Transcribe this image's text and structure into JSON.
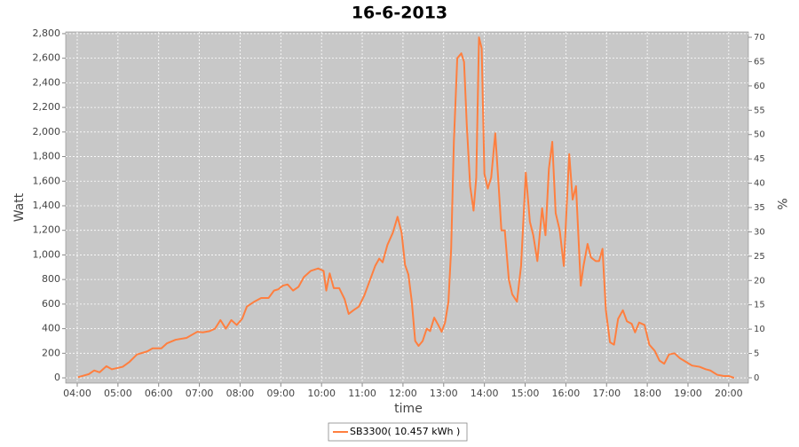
{
  "chart_data": {
    "type": "line",
    "title": "16-6-2013",
    "x_label": "time",
    "y_label": "Watt",
    "y2_label": "%",
    "grid": true,
    "legend": "bottom",
    "xlim": [
      "03:43",
      "20:29"
    ],
    "xticks": [
      "04:00",
      "05:00",
      "06:00",
      "07:00",
      "08:00",
      "09:00",
      "10:00",
      "11:00",
      "12:00",
      "13:00",
      "14:00",
      "15:00",
      "16:00",
      "17:00",
      "18:00",
      "19:00",
      "20:00"
    ],
    "ylim": [
      -43,
      2814
    ],
    "yticks": [
      0,
      200,
      400,
      600,
      800,
      {
        "value": 1000,
        "label": "1,000"
      },
      {
        "value": 1200,
        "label": "1,200"
      },
      {
        "value": 1400,
        "label": "1,400"
      },
      {
        "value": 1600,
        "label": "1,600"
      },
      {
        "value": 1800,
        "label": "1,800"
      },
      {
        "value": 2000,
        "label": "2,000"
      },
      {
        "value": 2200,
        "label": "2,200"
      },
      {
        "value": 2400,
        "label": "2,400"
      },
      {
        "value": 2600,
        "label": "2,600"
      },
      {
        "value": 2800,
        "label": "2,800"
      }
    ],
    "y2lim": [
      -1.1,
      71.1
    ],
    "y2ticks": [
      0,
      5,
      10,
      15,
      20,
      25,
      30,
      35,
      40,
      45,
      50,
      55,
      60,
      65,
      70
    ],
    "x": [
      "04:01",
      "04:17",
      "04:25",
      "04:33",
      "04:43",
      "04:51",
      "05:07",
      "05:17",
      "05:28",
      "05:43",
      "05:51",
      "06:04",
      "06:12",
      "06:25",
      "06:41",
      "06:57",
      "07:05",
      "07:15",
      "07:23",
      "07:31",
      "07:39",
      "07:47",
      "07:55",
      "08:03",
      "08:10",
      "08:21",
      "08:31",
      "08:42",
      "08:50",
      "08:56",
      "09:03",
      "09:10",
      "09:18",
      "09:26",
      "09:34",
      "09:44",
      "09:55",
      "10:03",
      "10:07",
      "10:12",
      "10:18",
      "10:26",
      "10:34",
      "10:40",
      "10:47",
      "10:55",
      "11:03",
      "11:11",
      "11:19",
      "11:25",
      "11:30",
      "11:37",
      "11:45",
      "11:52",
      "11:58",
      "12:03",
      "12:08",
      "12:13",
      "12:18",
      "12:23",
      "12:29",
      "12:35",
      "12:40",
      "12:46",
      "12:52",
      "12:57",
      "13:02",
      "13:07",
      "13:11",
      "13:15",
      "13:20",
      "13:26",
      "13:30",
      "13:34",
      "13:39",
      "13:44",
      "13:48",
      "13:52",
      "13:56",
      "14:00",
      "14:05",
      "14:10",
      "14:16",
      "14:21",
      "14:25",
      "14:30",
      "14:36",
      "14:41",
      "14:48",
      "14:54",
      "15:01",
      "15:07",
      "15:12",
      "15:18",
      "15:25",
      "15:30",
      "15:35",
      "15:40",
      "15:45",
      "15:51",
      "15:57",
      "16:05",
      "16:10",
      "16:15",
      "16:22",
      "16:26",
      "16:32",
      "16:37",
      "16:44",
      "16:49",
      "16:54",
      "16:59",
      "17:05",
      "17:11",
      "17:17",
      "17:24",
      "17:30",
      "17:37",
      "17:42",
      "17:48",
      "17:56",
      "18:03",
      "18:11",
      "18:18",
      "18:25",
      "18:32",
      "18:40",
      "18:48",
      "18:57",
      "19:06",
      "19:17",
      "19:26",
      "19:33",
      "19:43",
      "19:53",
      "20:00",
      "20:08"
    ],
    "series": [
      {
        "name": "SB3300( 10.457 kWh )",
        "color": "#ff7f3f",
        "values": [
          5,
          30,
          60,
          45,
          95,
          70,
          90,
          130,
          190,
          215,
          240,
          240,
          280,
          310,
          325,
          375,
          370,
          380,
          400,
          470,
          400,
          470,
          430,
          480,
          580,
          620,
          650,
          650,
          710,
          720,
          750,
          760,
          710,
          740,
          820,
          870,
          890,
          870,
          710,
          850,
          730,
          730,
          640,
          520,
          550,
          580,
          670,
          790,
          910,
          970,
          940,
          1080,
          1180,
          1310,
          1180,
          920,
          840,
          620,
          300,
          260,
          300,
          400,
          380,
          490,
          430,
          375,
          450,
          620,
          1050,
          1920,
          2600,
          2640,
          2570,
          2060,
          1560,
          1360,
          1630,
          2770,
          2680,
          1660,
          1540,
          1630,
          1990,
          1560,
          1200,
          1200,
          800,
          680,
          620,
          910,
          1670,
          1270,
          1160,
          950,
          1380,
          1160,
          1700,
          1920,
          1340,
          1200,
          910,
          1820,
          1450,
          1560,
          750,
          910,
          1090,
          980,
          950,
          950,
          1050,
          550,
          290,
          270,
          480,
          550,
          460,
          440,
          370,
          450,
          430,
          270,
          220,
          140,
          115,
          190,
          200,
          160,
          130,
          100,
          90,
          70,
          60,
          25,
          15,
          15,
          0
        ]
      }
    ]
  }
}
